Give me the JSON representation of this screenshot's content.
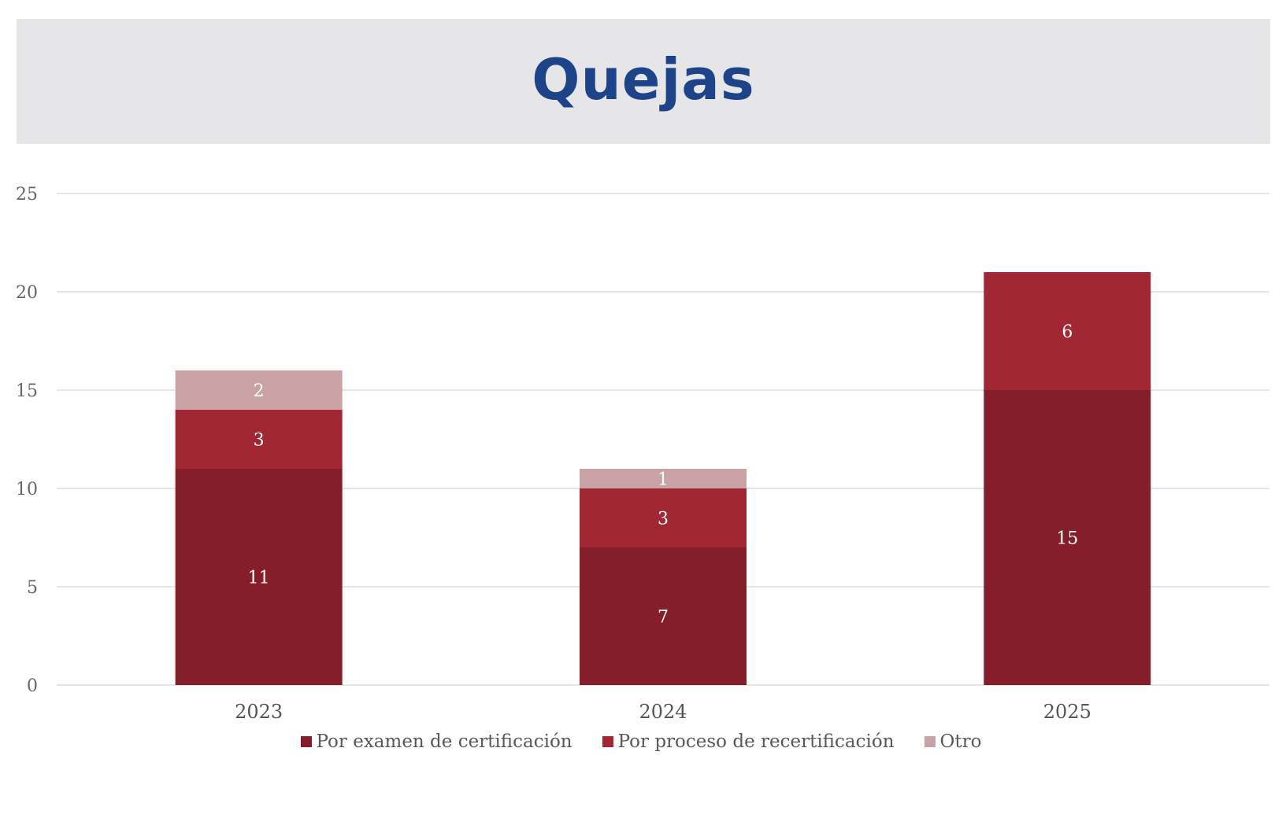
{
  "header": {
    "title": "Quejas"
  },
  "colors": {
    "banner_bg": "#e6e6e8",
    "title": "#1d4389"
  },
  "chart_data": {
    "type": "bar",
    "stacked": true,
    "title": "",
    "xlabel": "",
    "ylabel": "",
    "categories": [
      "2023",
      "2024",
      "2025"
    ],
    "ylim": [
      0,
      25
    ],
    "yticks": [
      0,
      5,
      10,
      15,
      20,
      25
    ],
    "grid": true,
    "legend_position": "bottom",
    "series": [
      {
        "name": "Por examen de certificación",
        "values": [
          11,
          7,
          15
        ],
        "color": "#851e2a"
      },
      {
        "name": "Por proceso de recertificación",
        "values": [
          3,
          3,
          6
        ],
        "color": "#a12735"
      },
      {
        "name": "Otro",
        "values": [
          2,
          1,
          0
        ],
        "color": "#c8a2a4"
      }
    ]
  }
}
